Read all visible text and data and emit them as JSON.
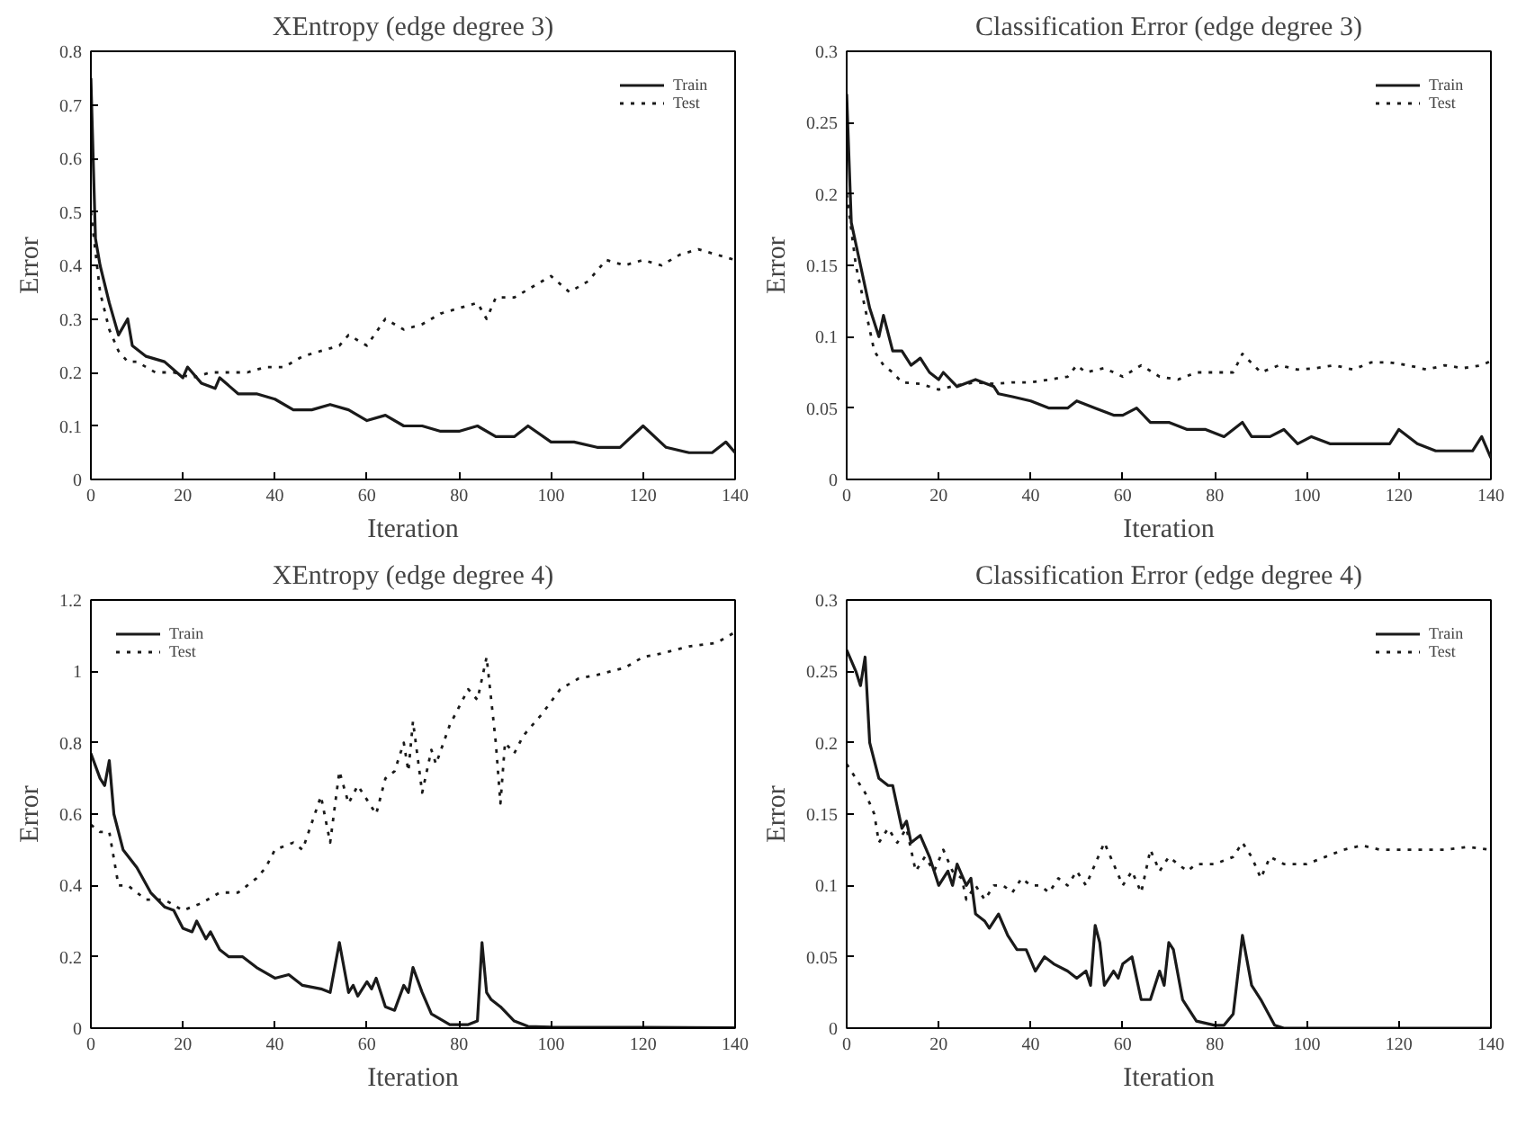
{
  "chart_data": [
    {
      "type": "line",
      "title": "XEntropy (edge degree 3)",
      "xlabel": "Iteration",
      "ylabel": "Error",
      "xlim": [
        0,
        140
      ],
      "ylim": [
        0,
        0.8
      ],
      "xticks": [
        0,
        20,
        40,
        60,
        80,
        100,
        120,
        140
      ],
      "yticks": [
        0,
        0.1,
        0.2,
        0.3,
        0.4,
        0.5,
        0.6,
        0.7,
        0.8
      ],
      "grid": false,
      "legend": "top right",
      "marker": "none",
      "series": [
        {
          "name": "Train",
          "color": "#1a1a1a",
          "line_style": "solid",
          "x": [
            0,
            1,
            2,
            4,
            6,
            8,
            9,
            12,
            16,
            20,
            21,
            24,
            27,
            28,
            32,
            36,
            40,
            44,
            48,
            52,
            56,
            60,
            64,
            68,
            72,
            76,
            80,
            84,
            88,
            92,
            95,
            100,
            105,
            110,
            115,
            120,
            125,
            130,
            135,
            138,
            140
          ],
          "values": [
            0.75,
            0.45,
            0.4,
            0.33,
            0.27,
            0.3,
            0.25,
            0.23,
            0.22,
            0.19,
            0.21,
            0.18,
            0.17,
            0.19,
            0.16,
            0.16,
            0.15,
            0.13,
            0.13,
            0.14,
            0.13,
            0.11,
            0.12,
            0.1,
            0.1,
            0.09,
            0.09,
            0.1,
            0.08,
            0.08,
            0.1,
            0.07,
            0.07,
            0.06,
            0.06,
            0.1,
            0.06,
            0.05,
            0.05,
            0.07,
            0.05
          ]
        },
        {
          "name": "Test",
          "color": "#1a1a1a",
          "line_style": "dotted",
          "x": [
            0,
            2,
            4,
            6,
            8,
            10,
            14,
            18,
            22,
            26,
            30,
            34,
            38,
            42,
            46,
            50,
            54,
            56,
            60,
            64,
            68,
            72,
            76,
            80,
            84,
            86,
            88,
            92,
            96,
            100,
            104,
            108,
            112,
            116,
            120,
            124,
            128,
            132,
            136,
            140
          ],
          "values": [
            0.5,
            0.35,
            0.28,
            0.24,
            0.22,
            0.22,
            0.2,
            0.2,
            0.19,
            0.2,
            0.2,
            0.2,
            0.21,
            0.21,
            0.23,
            0.24,
            0.25,
            0.27,
            0.25,
            0.3,
            0.28,
            0.29,
            0.31,
            0.32,
            0.33,
            0.3,
            0.34,
            0.34,
            0.36,
            0.38,
            0.35,
            0.37,
            0.41,
            0.4,
            0.41,
            0.4,
            0.42,
            0.43,
            0.42,
            0.41
          ]
        }
      ]
    },
    {
      "type": "line",
      "title": "Classification Error (edge degree 3)",
      "xlabel": "Iteration",
      "ylabel": "Error",
      "xlim": [
        0,
        140
      ],
      "ylim": [
        0,
        0.3
      ],
      "xticks": [
        0,
        20,
        40,
        60,
        80,
        100,
        120,
        140
      ],
      "yticks": [
        0,
        0.05,
        0.1,
        0.15,
        0.2,
        0.25,
        0.3
      ],
      "grid": false,
      "legend": "top right",
      "marker": "none",
      "series": [
        {
          "name": "Train",
          "color": "#1a1a1a",
          "line_style": "solid",
          "x": [
            0,
            1,
            3,
            5,
            7,
            8,
            10,
            12,
            14,
            16,
            18,
            20,
            21,
            24,
            28,
            32,
            33,
            36,
            40,
            44,
            48,
            50,
            54,
            58,
            60,
            63,
            66,
            70,
            74,
            78,
            82,
            86,
            88,
            92,
            95,
            98,
            101,
            105,
            110,
            114,
            118,
            120,
            124,
            128,
            132,
            136,
            138,
            140
          ],
          "values": [
            0.27,
            0.18,
            0.15,
            0.12,
            0.1,
            0.115,
            0.09,
            0.09,
            0.08,
            0.085,
            0.075,
            0.07,
            0.075,
            0.065,
            0.07,
            0.065,
            0.06,
            0.058,
            0.055,
            0.05,
            0.05,
            0.055,
            0.05,
            0.045,
            0.045,
            0.05,
            0.04,
            0.04,
            0.035,
            0.035,
            0.03,
            0.04,
            0.03,
            0.03,
            0.035,
            0.025,
            0.03,
            0.025,
            0.025,
            0.025,
            0.025,
            0.035,
            0.025,
            0.02,
            0.02,
            0.02,
            0.03,
            0.015
          ]
        },
        {
          "name": "Test",
          "color": "#1a1a1a",
          "line_style": "dotted",
          "x": [
            0,
            2,
            4,
            6,
            8,
            10,
            12,
            16,
            20,
            24,
            28,
            32,
            36,
            40,
            44,
            48,
            50,
            52,
            56,
            60,
            64,
            68,
            72,
            76,
            80,
            84,
            86,
            90,
            94,
            98,
            102,
            106,
            110,
            114,
            118,
            122,
            126,
            130,
            134,
            138,
            140
          ],
          "values": [
            0.2,
            0.15,
            0.12,
            0.09,
            0.08,
            0.075,
            0.068,
            0.067,
            0.063,
            0.066,
            0.068,
            0.067,
            0.068,
            0.068,
            0.07,
            0.072,
            0.08,
            0.075,
            0.078,
            0.072,
            0.08,
            0.072,
            0.07,
            0.075,
            0.075,
            0.075,
            0.088,
            0.075,
            0.08,
            0.077,
            0.078,
            0.08,
            0.077,
            0.082,
            0.082,
            0.08,
            0.077,
            0.08,
            0.078,
            0.08,
            0.083
          ]
        }
      ]
    },
    {
      "type": "line",
      "title": "XEntropy (edge degree 4)",
      "xlabel": "Iteration",
      "ylabel": "Error",
      "xlim": [
        0,
        140
      ],
      "ylim": [
        0,
        1.2
      ],
      "xticks": [
        0,
        20,
        40,
        60,
        80,
        100,
        120,
        140
      ],
      "yticks": [
        0,
        0.2,
        0.4,
        0.6,
        0.8,
        1,
        1.2
      ],
      "grid": false,
      "legend": "top left",
      "marker": "none",
      "series": [
        {
          "name": "Train",
          "color": "#1a1a1a",
          "line_style": "solid",
          "x": [
            0,
            2,
            3,
            4,
            5,
            7,
            10,
            13,
            16,
            18,
            20,
            22,
            23,
            25,
            26,
            28,
            30,
            33,
            36,
            40,
            43,
            46,
            50,
            52,
            54,
            56,
            57,
            58,
            60,
            61,
            62,
            64,
            66,
            68,
            69,
            70,
            72,
            74,
            78,
            82,
            84,
            85,
            86,
            87,
            89,
            92,
            95,
            100,
            110,
            120,
            140
          ],
          "values": [
            0.77,
            0.7,
            0.68,
            0.75,
            0.6,
            0.5,
            0.45,
            0.38,
            0.34,
            0.33,
            0.28,
            0.27,
            0.3,
            0.25,
            0.27,
            0.22,
            0.2,
            0.2,
            0.17,
            0.14,
            0.15,
            0.12,
            0.11,
            0.1,
            0.24,
            0.1,
            0.12,
            0.09,
            0.13,
            0.11,
            0.14,
            0.06,
            0.05,
            0.12,
            0.1,
            0.17,
            0.1,
            0.04,
            0.01,
            0.01,
            0.02,
            0.24,
            0.1,
            0.08,
            0.06,
            0.02,
            0.005,
            0.003,
            0.002,
            0.002,
            0.001
          ]
        },
        {
          "name": "Test",
          "color": "#1a1a1a",
          "line_style": "dotted",
          "x": [
            0,
            2,
            4,
            6,
            8,
            12,
            16,
            20,
            24,
            28,
            32,
            34,
            36,
            38,
            40,
            44,
            46,
            50,
            52,
            54,
            56,
            58,
            60,
            62,
            64,
            66,
            68,
            69,
            70,
            72,
            74,
            75,
            78,
            82,
            84,
            86,
            88,
            89,
            90,
            92,
            94,
            98,
            102,
            106,
            110,
            116,
            120,
            124,
            130,
            136,
            140
          ],
          "values": [
            0.57,
            0.55,
            0.55,
            0.4,
            0.4,
            0.36,
            0.36,
            0.33,
            0.35,
            0.38,
            0.38,
            0.4,
            0.42,
            0.45,
            0.5,
            0.52,
            0.5,
            0.65,
            0.52,
            0.72,
            0.63,
            0.68,
            0.64,
            0.6,
            0.7,
            0.72,
            0.8,
            0.72,
            0.86,
            0.66,
            0.78,
            0.74,
            0.85,
            0.95,
            0.92,
            1.04,
            0.8,
            0.63,
            0.8,
            0.77,
            0.82,
            0.88,
            0.95,
            0.98,
            0.99,
            1.01,
            1.04,
            1.05,
            1.07,
            1.08,
            1.11
          ]
        }
      ]
    },
    {
      "type": "line",
      "title": "Classification Error (edge degree 4)",
      "xlabel": "Iteration",
      "ylabel": "Error",
      "xlim": [
        0,
        140
      ],
      "ylim": [
        0,
        0.3
      ],
      "xticks": [
        0,
        20,
        40,
        60,
        80,
        100,
        120,
        140
      ],
      "yticks": [
        0,
        0.05,
        0.1,
        0.15,
        0.2,
        0.25,
        0.3
      ],
      "grid": false,
      "legend": "top right",
      "marker": "none",
      "series": [
        {
          "name": "Train",
          "color": "#1a1a1a",
          "line_style": "solid",
          "x": [
            0,
            2,
            3,
            4,
            5,
            7,
            9,
            10,
            12,
            13,
            14,
            16,
            18,
            20,
            22,
            23,
            24,
            26,
            27,
            28,
            30,
            31,
            33,
            35,
            37,
            39,
            41,
            43,
            45,
            48,
            50,
            52,
            53,
            54,
            55,
            56,
            58,
            59,
            60,
            62,
            64,
            66,
            68,
            69,
            70,
            71,
            73,
            76,
            80,
            82,
            84,
            86,
            88,
            90,
            93,
            95,
            140
          ],
          "values": [
            0.265,
            0.25,
            0.24,
            0.26,
            0.2,
            0.175,
            0.17,
            0.17,
            0.14,
            0.145,
            0.13,
            0.135,
            0.12,
            0.1,
            0.11,
            0.1,
            0.115,
            0.1,
            0.105,
            0.08,
            0.075,
            0.07,
            0.08,
            0.065,
            0.055,
            0.055,
            0.04,
            0.05,
            0.045,
            0.04,
            0.035,
            0.04,
            0.03,
            0.072,
            0.06,
            0.03,
            0.04,
            0.035,
            0.045,
            0.05,
            0.02,
            0.02,
            0.04,
            0.03,
            0.06,
            0.055,
            0.02,
            0.005,
            0.002,
            0.002,
            0.01,
            0.065,
            0.03,
            0.02,
            0.002,
            0,
            0
          ]
        },
        {
          "name": "Test",
          "color": "#1a1a1a",
          "line_style": "dotted",
          "x": [
            0,
            2,
            4,
            6,
            7,
            9,
            11,
            13,
            15,
            17,
            19,
            21,
            23,
            25,
            26,
            28,
            30,
            32,
            34,
            36,
            38,
            40,
            42,
            44,
            46,
            48,
            50,
            52,
            54,
            56,
            58,
            60,
            62,
            64,
            66,
            68,
            70,
            72,
            74,
            76,
            80,
            84,
            86,
            88,
            90,
            92,
            95,
            100,
            104,
            108,
            112,
            116,
            120,
            125,
            130,
            135,
            140
          ],
          "values": [
            0.185,
            0.175,
            0.165,
            0.15,
            0.13,
            0.14,
            0.13,
            0.14,
            0.11,
            0.12,
            0.11,
            0.125,
            0.11,
            0.105,
            0.09,
            0.1,
            0.09,
            0.1,
            0.1,
            0.095,
            0.105,
            0.1,
            0.1,
            0.095,
            0.105,
            0.1,
            0.11,
            0.1,
            0.115,
            0.13,
            0.115,
            0.1,
            0.11,
            0.095,
            0.125,
            0.11,
            0.12,
            0.115,
            0.11,
            0.115,
            0.115,
            0.12,
            0.13,
            0.12,
            0.105,
            0.12,
            0.115,
            0.115,
            0.12,
            0.125,
            0.128,
            0.125,
            0.125,
            0.125,
            0.125,
            0.127,
            0.125
          ]
        }
      ]
    }
  ]
}
